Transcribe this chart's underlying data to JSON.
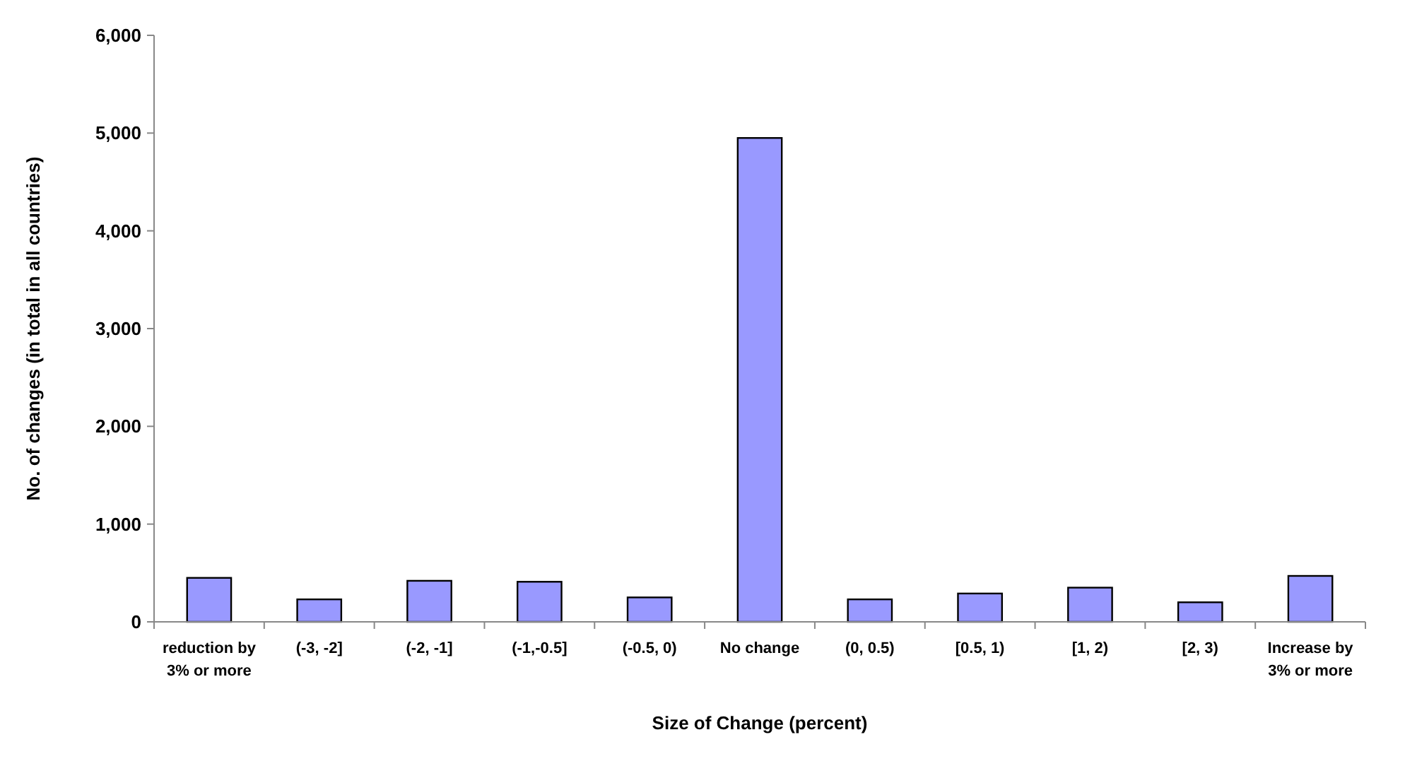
{
  "chart_data": {
    "type": "bar",
    "xlabel": "Size of Change (percent)",
    "ylabel": "No. of changes (in total in all countries)",
    "categories": [
      "reduction by 3% or more",
      "(-3, -2]",
      "(-2, -1]",
      "(-1,-0.5]",
      "(-0.5, 0)",
      "No change",
      "(0, 0.5)",
      "[0.5, 1)",
      "[1, 2)",
      "[2, 3)",
      "Increase by 3% or more"
    ],
    "values": [
      450,
      230,
      420,
      410,
      250,
      4950,
      230,
      290,
      350,
      200,
      470
    ],
    "color": "#9999ff",
    "ylim": [
      0,
      6000
    ],
    "yticks": [
      {
        "value": 0,
        "label": "0"
      },
      {
        "value": 1000,
        "label": "1,000"
      },
      {
        "value": 2000,
        "label": "2,000"
      },
      {
        "value": 3000,
        "label": "3,000"
      },
      {
        "value": 4000,
        "label": "4,000"
      },
      {
        "value": 5000,
        "label": "5,000"
      },
      {
        "value": 6000,
        "label": "6,000"
      }
    ],
    "grid": false
  }
}
